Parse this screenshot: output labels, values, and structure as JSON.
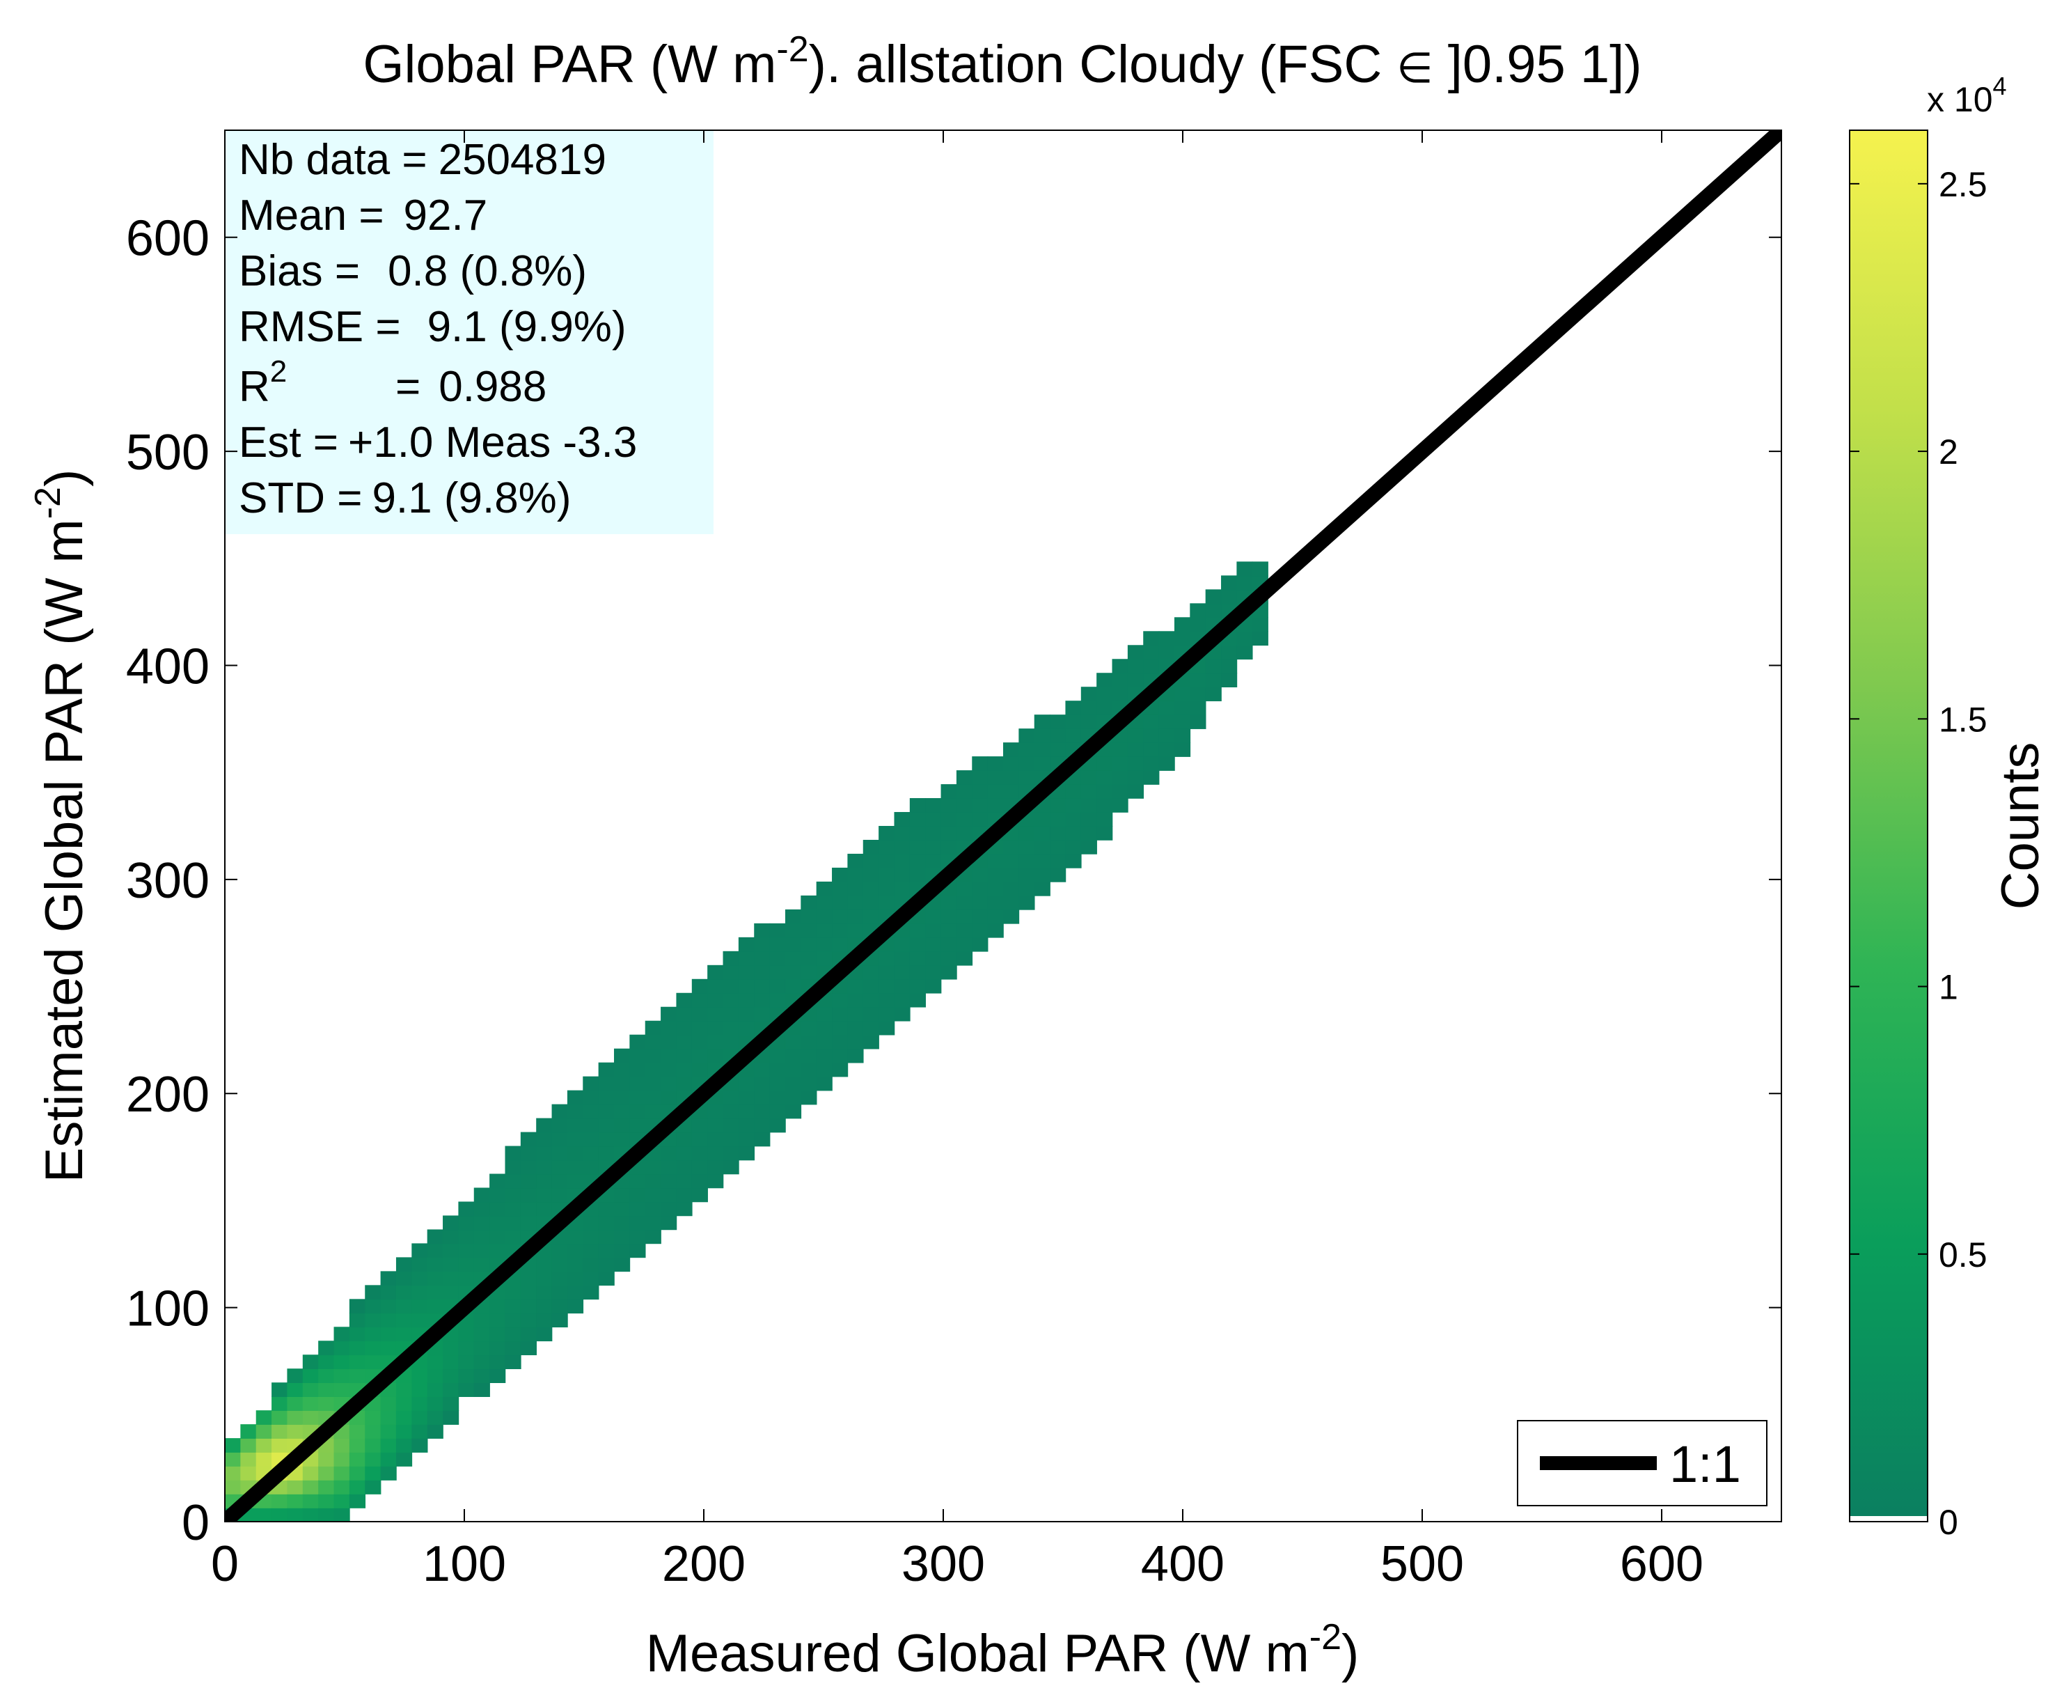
{
  "chart_data": {
    "type": "heatmap",
    "title": {
      "prefix": "Global PAR (W m",
      "exponent": "-2",
      "middle": "). allstation  Cloudy (FSC ",
      "symbol": "∈",
      "suffix": " ]0.95 1])"
    },
    "xlabel": {
      "text": "Measured Global PAR (W m",
      "exponent": "-2",
      "close": ")"
    },
    "ylabel": {
      "text": "Estimated Global PAR (W m",
      "exponent": "-2",
      "close": ")"
    },
    "xlim": [
      0,
      650
    ],
    "ylim": [
      0,
      650
    ],
    "x_ticks": [
      0,
      100,
      200,
      300,
      400,
      500,
      600
    ],
    "y_ticks": [
      0,
      100,
      200,
      300,
      400,
      500,
      600
    ],
    "bin_size": 6.5,
    "density": {
      "description_points": [
        {
          "x": 0,
          "y_low": 0,
          "y_high": 35
        },
        {
          "x": 50,
          "y_low": 0,
          "y_high": 95
        },
        {
          "x": 100,
          "y_low": 55,
          "y_high": 150
        },
        {
          "x": 150,
          "y_low": 100,
          "y_high": 205
        },
        {
          "x": 200,
          "y_low": 150,
          "y_high": 255
        },
        {
          "x": 250,
          "y_low": 200,
          "y_high": 300
        },
        {
          "x": 300,
          "y_low": 250,
          "y_high": 345
        },
        {
          "x": 350,
          "y_low": 300,
          "y_high": 380
        },
        {
          "x": 400,
          "y_low": 360,
          "y_high": 425
        },
        {
          "x": 430,
          "y_low": 410,
          "y_high": 450
        }
      ],
      "peak_counts": 26000,
      "peak_location": [
        25,
        25
      ]
    },
    "reference_line": {
      "label": "1:1",
      "slope": 1,
      "intercept": 0,
      "color": "#000000"
    },
    "legend": {
      "position": "bottom-right",
      "entries": [
        "1:1"
      ]
    },
    "colorbar": {
      "label": "Counts",
      "multiplier": "x 10",
      "multiplier_exp": "4",
      "ticks": [
        {
          "value": 0,
          "label": "0"
        },
        {
          "value": 0.5,
          "label": "0.5"
        },
        {
          "value": 1,
          "label": "1"
        },
        {
          "value": 1.5,
          "label": "1.5"
        },
        {
          "value": 2,
          "label": "2"
        },
        {
          "value": 2.5,
          "label": "2.5"
        }
      ],
      "range": [
        0,
        2.6
      ],
      "colormap": [
        "#0b7f60",
        "#0a9e5b",
        "#2fb455",
        "#7fc94f",
        "#c2e04a",
        "#f5f24e"
      ]
    },
    "stats": {
      "nb_data": {
        "label": "Nb data  =",
        "value": "2504819"
      },
      "mean": {
        "label": "Mean   =",
        "value": "92.7"
      },
      "bias": {
        "label": "Bias     =",
        "value": "0.8 (0.8%)"
      },
      "rmse": {
        "label": "RMSE  =",
        "value": "9.1  (9.9%)"
      },
      "r2": {
        "label": "R",
        "exponent": "2",
        "eq": "=",
        "value": "0.988"
      },
      "est": {
        "label": "Est  =",
        "value": "+1.0 Meas -3.3"
      },
      "std": {
        "label": "STD      =",
        "value": "9.1 (9.8%)"
      }
    },
    "grid": false
  },
  "colors": {
    "stats_box_bg": "#e6fdff",
    "line": "#000000"
  }
}
